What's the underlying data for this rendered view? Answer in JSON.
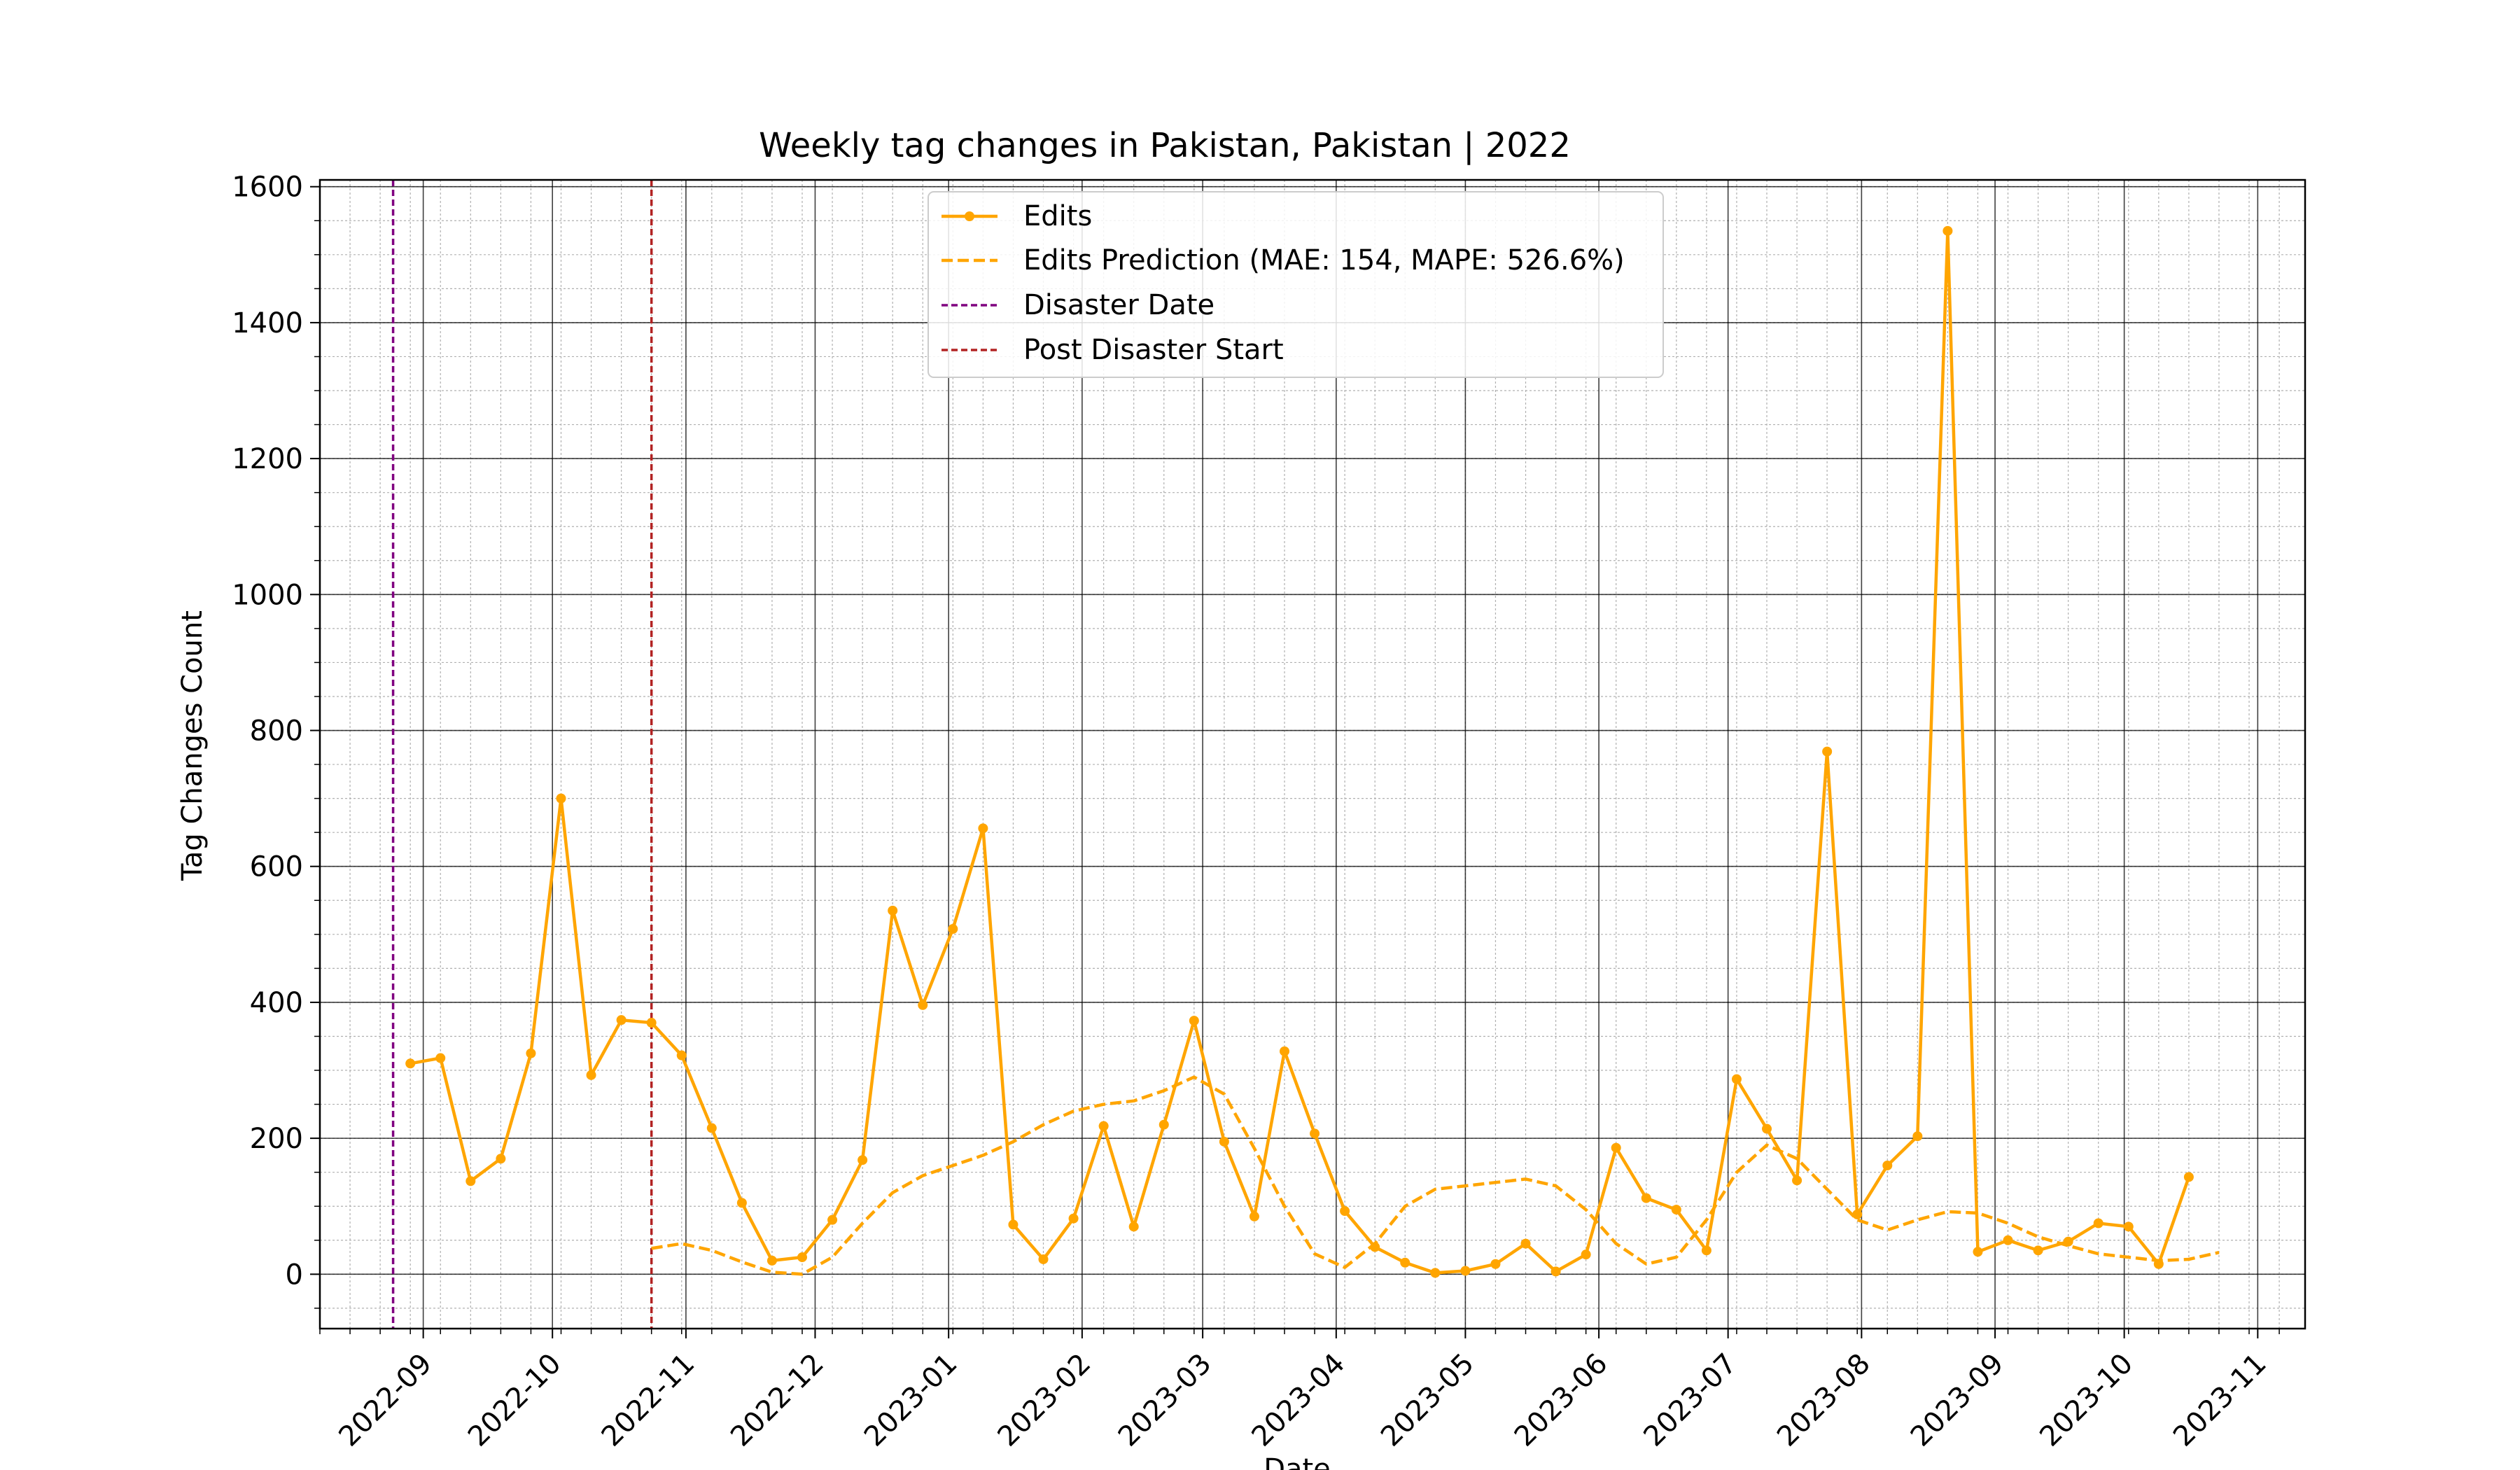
{
  "chart_data": {
    "type": "line",
    "title": "Weekly tag changes in Pakistan, Pakistan | 2022",
    "xlabel": "Date",
    "ylabel": "Tag Changes Count",
    "xlim": [
      "2022-08-08",
      "2023-11-12"
    ],
    "ylim": [
      -80,
      1610
    ],
    "x_ticks": [
      "2022-09-01",
      "2022-10-01",
      "2022-11-01",
      "2022-12-01",
      "2023-01-01",
      "2023-02-01",
      "2023-03-01",
      "2023-04-01",
      "2023-05-01",
      "2023-06-01",
      "2023-07-01",
      "2023-08-01",
      "2023-09-01",
      "2023-10-01",
      "2023-11-01"
    ],
    "x_tick_labels": [
      "2022-09",
      "2022-10",
      "2022-11",
      "2022-12",
      "2023-01",
      "2023-02",
      "2023-03",
      "2023-04",
      "2023-05",
      "2023-06",
      "2023-07",
      "2023-08",
      "2023-09",
      "2023-10",
      "2023-11"
    ],
    "y_ticks": [
      0,
      200,
      400,
      600,
      800,
      1000,
      1200,
      1400,
      1600
    ],
    "y_tick_labels": [
      "0",
      "200",
      "400",
      "600",
      "800",
      "1000",
      "1200",
      "1400",
      "1600"
    ],
    "grid": true,
    "minor_grid": true,
    "legend_position": "top-center",
    "series": [
      {
        "name": "Edits",
        "style": "solid-markers",
        "color": "#FFA500",
        "x": [
          "2022-08-29",
          "2022-09-05",
          "2022-09-12",
          "2022-09-19",
          "2022-09-26",
          "2022-10-03",
          "2022-10-10",
          "2022-10-17",
          "2022-10-24",
          "2022-10-31",
          "2022-11-07",
          "2022-11-14",
          "2022-11-21",
          "2022-11-28",
          "2022-12-05",
          "2022-12-12",
          "2022-12-19",
          "2022-12-26",
          "2023-01-02",
          "2023-01-09",
          "2023-01-16",
          "2023-01-23",
          "2023-01-30",
          "2023-02-06",
          "2023-02-13",
          "2023-02-20",
          "2023-02-27",
          "2023-03-06",
          "2023-03-13",
          "2023-03-20",
          "2023-03-27",
          "2023-04-03",
          "2023-04-10",
          "2023-04-17",
          "2023-04-24",
          "2023-05-01",
          "2023-05-08",
          "2023-05-15",
          "2023-05-22",
          "2023-05-29",
          "2023-06-05",
          "2023-06-12",
          "2023-06-19",
          "2023-06-26",
          "2023-07-03",
          "2023-07-10",
          "2023-07-17",
          "2023-07-24",
          "2023-07-31",
          "2023-08-07",
          "2023-08-14",
          "2023-08-21",
          "2023-08-28",
          "2023-09-04",
          "2023-09-11",
          "2023-09-18",
          "2023-09-25",
          "2023-10-02",
          "2023-10-09",
          "2023-10-16"
        ],
        "values": [
          310,
          318,
          137,
          170,
          325,
          700,
          293,
          374,
          370,
          322,
          215,
          105,
          20,
          25,
          80,
          168,
          535,
          396,
          508,
          656,
          73,
          22,
          82,
          218,
          70,
          220,
          373,
          195,
          85,
          328,
          207,
          93,
          40,
          17,
          2,
          5,
          15,
          45,
          4,
          29,
          186,
          112,
          95,
          35,
          287,
          214,
          138,
          769,
          88,
          160,
          203,
          1535,
          33,
          50,
          35,
          48,
          75,
          70,
          15,
          143
        ]
      },
      {
        "name": "Edits Prediction (MAE: 154, MAPE: 526.6%)",
        "style": "dashed",
        "color": "#FFA500",
        "x": [
          "2022-10-24",
          "2022-10-31",
          "2022-11-07",
          "2022-11-14",
          "2022-11-21",
          "2022-11-28",
          "2022-12-05",
          "2022-12-12",
          "2022-12-19",
          "2022-12-26",
          "2023-01-02",
          "2023-01-09",
          "2023-01-16",
          "2023-01-23",
          "2023-01-30",
          "2023-02-06",
          "2023-02-13",
          "2023-02-20",
          "2023-02-27",
          "2023-03-06",
          "2023-03-13",
          "2023-03-20",
          "2023-03-27",
          "2023-04-03",
          "2023-04-10",
          "2023-04-17",
          "2023-04-24",
          "2023-05-01",
          "2023-05-08",
          "2023-05-15",
          "2023-05-22",
          "2023-05-29",
          "2023-06-05",
          "2023-06-12",
          "2023-06-19",
          "2023-06-26",
          "2023-07-03",
          "2023-07-10",
          "2023-07-17",
          "2023-07-24",
          "2023-07-31",
          "2023-08-07",
          "2023-08-14",
          "2023-08-21",
          "2023-08-28",
          "2023-09-04",
          "2023-09-11",
          "2023-09-18",
          "2023-09-25",
          "2023-10-02",
          "2023-10-09",
          "2023-10-16",
          "2023-10-23"
        ],
        "values": [
          38,
          45,
          35,
          18,
          3,
          0,
          25,
          75,
          120,
          145,
          160,
          175,
          195,
          220,
          240,
          250,
          255,
          270,
          290,
          265,
          185,
          100,
          30,
          10,
          45,
          100,
          125,
          130,
          135,
          140,
          130,
          95,
          45,
          15,
          25,
          80,
          150,
          190,
          170,
          125,
          80,
          65,
          80,
          92,
          90,
          75,
          55,
          42,
          30,
          25,
          20,
          22,
          32
        ]
      },
      {
        "name": "Disaster Date",
        "style": "dashed-vline",
        "color": "#800080",
        "x": "2022-08-25"
      },
      {
        "name": "Post Disaster Start",
        "style": "dashed-vline",
        "color": "#B22222",
        "x": "2022-10-24"
      }
    ]
  }
}
